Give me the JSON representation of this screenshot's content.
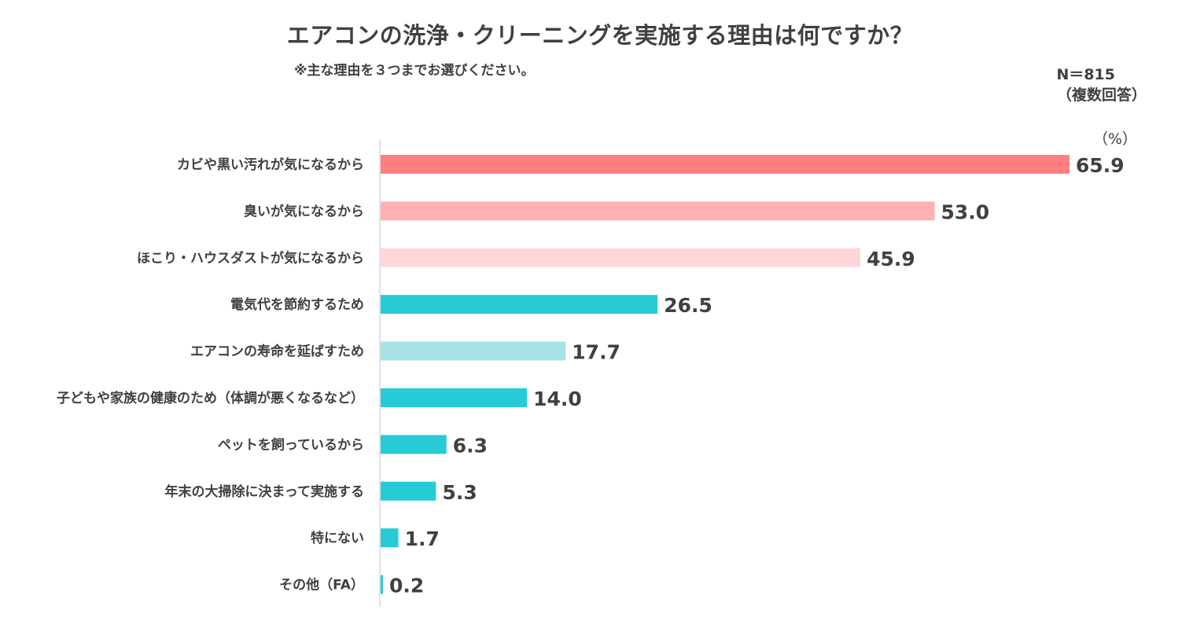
{
  "header": {
    "title": "エアコンの洗浄・クリーニングを実施する理由は何ですか？",
    "subtitle": "※主な理由を３つまでお選びください。",
    "sample": "N＝815",
    "note": "（複数回答）",
    "unit": "（%）"
  },
  "chart_data": {
    "type": "bar",
    "orientation": "horizontal",
    "title": "エアコンの洗浄・クリーニングを実施する理由は何ですか？",
    "categories": [
      "カビや黒い汚れが気になるから",
      "臭いが気になるから",
      "ほこり・ハウスダストが気になるから",
      "電気代を節約するため",
      "エアコンの寿命を延ばすため",
      "子どもや家族の健康のため（体調が悪くなるなど）",
      "ペットを飼っているから",
      "年末の大掃除に決まって実施する",
      "特にない",
      "その他（FA）"
    ],
    "values": [
      65.9,
      53.0,
      45.9,
      26.5,
      17.7,
      14.0,
      6.3,
      5.3,
      1.7,
      0.2
    ],
    "value_labels": [
      "65.9",
      "53.0",
      "45.9",
      "26.5",
      "17.7",
      "14.0",
      "6.3",
      "5.3",
      "1.7",
      "0.2"
    ],
    "colors": [
      "#ff7f7f",
      "#ffb0b3",
      "#ffd6d8",
      "#27cbd6",
      "#a6e3e6",
      "#27cbd6",
      "#27cbd6",
      "#27cbd6",
      "#27cbd6",
      "#27cbd6"
    ],
    "xlim": [
      0,
      65.9
    ],
    "xlabel": "",
    "ylabel": "",
    "grid": false,
    "axis_color": "#d9d9d9"
  }
}
